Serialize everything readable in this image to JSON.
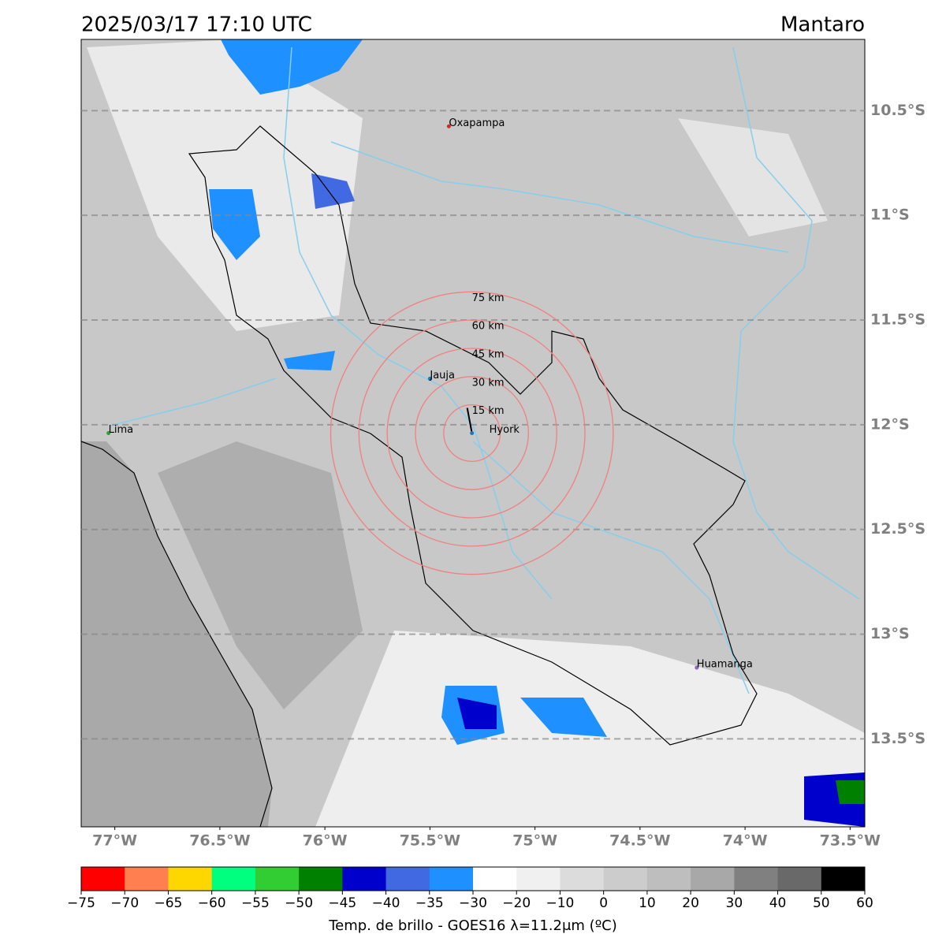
{
  "header": {
    "title": "2025/03/17 17:10 UTC",
    "region": "Mantaro"
  },
  "map": {
    "lon_lim": [
      -77.16,
      -73.43
    ],
    "lat_lim": [
      -10.16,
      -13.92
    ],
    "lat_ticks": [
      {
        "value": -10.5,
        "label": "10.5°S"
      },
      {
        "value": -11,
        "label": "11°S"
      },
      {
        "value": -11.5,
        "label": "11.5°S"
      },
      {
        "value": -12,
        "label": "12°S"
      },
      {
        "value": -12.5,
        "label": "12.5°S"
      },
      {
        "value": -13,
        "label": "13°S"
      },
      {
        "value": -13.5,
        "label": "13.5°S"
      }
    ],
    "lon_ticks": [
      {
        "value": -77,
        "label": "77°W"
      },
      {
        "value": -76.5,
        "label": "76.5°W"
      },
      {
        "value": -76,
        "label": "76°W"
      },
      {
        "value": -75.5,
        "label": "75.5°W"
      },
      {
        "value": -75,
        "label": "75°W"
      },
      {
        "value": -74.5,
        "label": "74.5°W"
      },
      {
        "value": -74,
        "label": "74°W"
      },
      {
        "value": -73.5,
        "label": "73.5°W"
      }
    ],
    "cities": [
      {
        "name": "Oxapampa",
        "lon": -75.41,
        "lat": -10.575,
        "color": "#d62728"
      },
      {
        "name": "Jauja",
        "lon": -75.5,
        "lat": -11.78,
        "color": "#1f77b4"
      },
      {
        "name": "Lima",
        "lon": -77.03,
        "lat": -12.04,
        "color": "#2ca02c"
      },
      {
        "name": "Hyork",
        "lon": -75.3,
        "lat": -12.04,
        "color": "#1f77b4"
      },
      {
        "name": "Huamanga",
        "lon": -74.23,
        "lat": -13.16,
        "color": "#9467bd"
      }
    ],
    "rings": [
      {
        "radius_km": 15,
        "label": "15 km"
      },
      {
        "radius_km": 30,
        "label": "30 km"
      },
      {
        "radius_km": 45,
        "label": "45 km"
      },
      {
        "radius_km": 60,
        "label": "60 km"
      },
      {
        "radius_km": 75,
        "label": "75 km"
      }
    ]
  },
  "colorbar": {
    "label": "Temp. de brillo - GOES16 λ=11.2μm (ºC)",
    "ticks": [
      {
        "value": -75,
        "label": "−75"
      },
      {
        "value": -70,
        "label": "−70"
      },
      {
        "value": -65,
        "label": "−65"
      },
      {
        "value": -60,
        "label": "−60"
      },
      {
        "value": -55,
        "label": "−55"
      },
      {
        "value": -50,
        "label": "−50"
      },
      {
        "value": -45,
        "label": "−45"
      },
      {
        "value": -40,
        "label": "−40"
      },
      {
        "value": -35,
        "label": "−35"
      },
      {
        "value": -30,
        "label": "−30"
      },
      {
        "value": -20,
        "label": "−20"
      },
      {
        "value": -10,
        "label": "−10"
      },
      0,
      10,
      20,
      30,
      40,
      50,
      60
    ],
    "colors": [
      "#ff0000",
      "#ff7f50",
      "#ffd700",
      "#00ff7f",
      "#32cd32",
      "#008000",
      "#0000cd",
      "#4169e1",
      "#1e90ff",
      "#ffffff",
      "#f0f0f0",
      "#dcdcdc",
      "#cccccc",
      "#bebebe",
      "#a8a8a8",
      "#808080",
      "#696969",
      "#000000"
    ]
  }
}
